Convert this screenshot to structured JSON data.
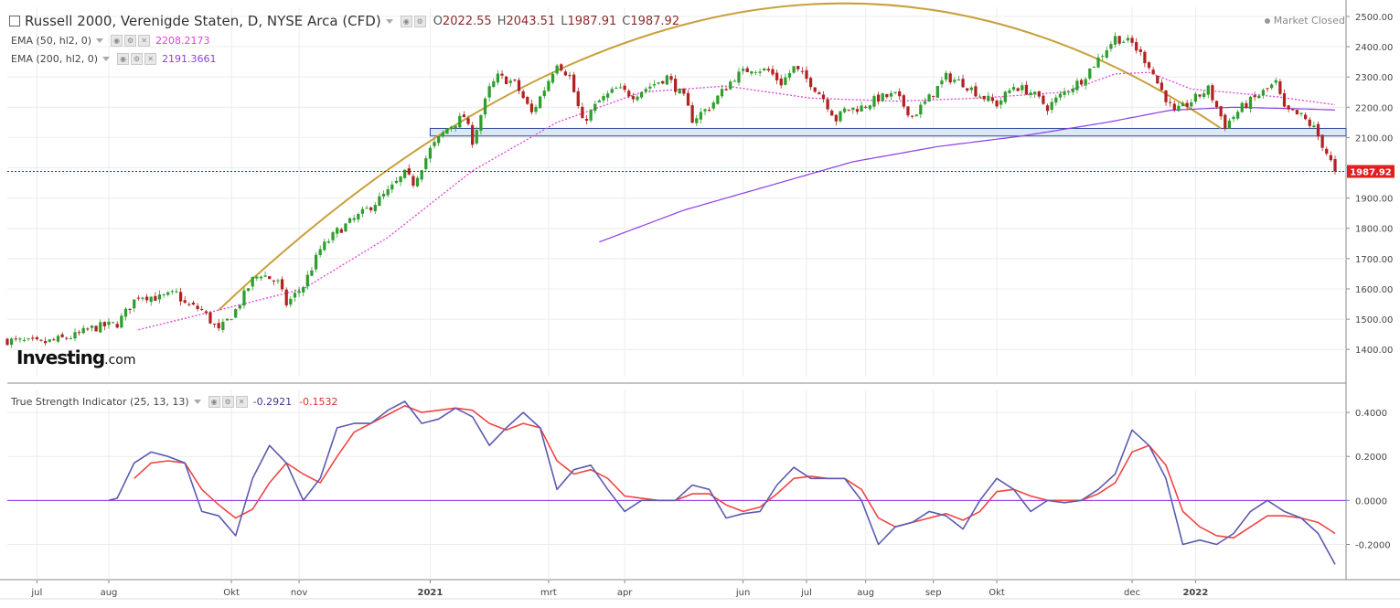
{
  "header": {
    "title": "Russell 2000, Verenigde Staten, D, NYSE Arca (CFD)",
    "ohlc": [
      {
        "k": "O",
        "v": "2022.55"
      },
      {
        "k": "H",
        "v": "2043.51"
      },
      {
        "k": "L",
        "v": "1987.91"
      },
      {
        "k": "C",
        "v": "1987.92"
      }
    ],
    "market_status": "Market Closed"
  },
  "indicators": [
    {
      "label": "EMA (50, hl2, 0)",
      "value": "2208.2173",
      "color": "#e040e0"
    },
    {
      "label": "EMA (200, hl2, 0)",
      "value": "2191.3661",
      "color": "#8a3ee8"
    }
  ],
  "logo": {
    "main": "Investing",
    "suffix": ".com"
  },
  "tsi": {
    "label": "True Strength Indicator (25, 13, 13)",
    "value1": "-0.2921",
    "value2": "-0.1532",
    "color1": "#5b5bb0",
    "color2": "#f04545"
  },
  "price_tag": "1987.92",
  "colors": {
    "up": "#2e9e2e",
    "down": "#b22222",
    "arc": "#c8a03c",
    "zone": "#dce8f8"
  },
  "chart_data": [
    {
      "type": "candlestick",
      "title": "Russell 2000, Verenigde Staten, D, NYSE Arca (CFD)",
      "x_labels": [
        "jul",
        "aug",
        "Okt",
        "nov",
        "2021",
        "mrt",
        "apr",
        "jun",
        "jul",
        "aug",
        "sep",
        "Okt",
        "dec",
        "2022"
      ],
      "y_ticks": [
        1400,
        1500,
        1600,
        1700,
        1800,
        1900,
        2000,
        2100,
        2200,
        2300,
        2400,
        2500
      ],
      "ylim": [
        1310,
        2530
      ],
      "last_price": 1987.92,
      "horizontal_zone": [
        2105,
        2130
      ],
      "close_path": [
        [
          0,
          1430
        ],
        [
          8,
          1420
        ],
        [
          16,
          1445
        ],
        [
          20,
          1470
        ],
        [
          26,
          1485
        ],
        [
          31,
          1580
        ],
        [
          36,
          1570
        ],
        [
          40,
          1585
        ],
        [
          42,
          1550
        ],
        [
          46,
          1530
        ],
        [
          50,
          1460
        ],
        [
          54,
          1530
        ],
        [
          58,
          1630
        ],
        [
          60,
          1650
        ],
        [
          64,
          1620
        ],
        [
          66,
          1550
        ],
        [
          70,
          1610
        ],
        [
          74,
          1730
        ],
        [
          78,
          1790
        ],
        [
          84,
          1850
        ],
        [
          90,
          1920
        ],
        [
          94,
          1980
        ],
        [
          96,
          1950
        ],
        [
          100,
          2060
        ],
        [
          104,
          2130
        ],
        [
          108,
          2170
        ],
        [
          110,
          2090
        ],
        [
          114,
          2260
        ],
        [
          116,
          2300
        ],
        [
          120,
          2280
        ],
        [
          124,
          2180
        ],
        [
          127,
          2260
        ],
        [
          130,
          2350
        ],
        [
          133,
          2300
        ],
        [
          136,
          2150
        ],
        [
          140,
          2220
        ],
        [
          144,
          2260
        ],
        [
          148,
          2240
        ],
        [
          152,
          2270
        ],
        [
          156,
          2300
        ],
        [
          160,
          2230
        ],
        [
          162,
          2160
        ],
        [
          166,
          2200
        ],
        [
          172,
          2300
        ],
        [
          176,
          2330
        ],
        [
          180,
          2320
        ],
        [
          183,
          2280
        ],
        [
          186,
          2330
        ],
        [
          190,
          2280
        ],
        [
          193,
          2230
        ],
        [
          196,
          2160
        ],
        [
          198,
          2190
        ],
        [
          202,
          2200
        ],
        [
          206,
          2230
        ],
        [
          210,
          2240
        ],
        [
          214,
          2170
        ],
        [
          218,
          2230
        ],
        [
          222,
          2300
        ],
        [
          226,
          2280
        ],
        [
          230,
          2240
        ],
        [
          234,
          2210
        ],
        [
          238,
          2270
        ],
        [
          242,
          2250
        ],
        [
          246,
          2200
        ],
        [
          250,
          2250
        ],
        [
          254,
          2290
        ],
        [
          258,
          2360
        ],
        [
          262,
          2430
        ],
        [
          266,
          2410
        ],
        [
          270,
          2340
        ],
        [
          272,
          2280
        ],
        [
          276,
          2180
        ],
        [
          280,
          2220
        ],
        [
          284,
          2260
        ],
        [
          288,
          2140
        ],
        [
          292,
          2200
        ],
        [
          296,
          2240
        ],
        [
          300,
          2280
        ],
        [
          302,
          2190
        ],
        [
          306,
          2170
        ],
        [
          309,
          2130
        ],
        [
          312,
          2050
        ],
        [
          314,
          1988
        ]
      ],
      "series": [
        {
          "name": "EMA (50, hl2, 0)",
          "points": [
            [
              31,
              1465
            ],
            [
              50,
              1530
            ],
            [
              70,
              1600
            ],
            [
              90,
              1770
            ],
            [
              110,
              1990
            ],
            [
              130,
              2150
            ],
            [
              150,
              2250
            ],
            [
              170,
              2270
            ],
            [
              190,
              2230
            ],
            [
              210,
              2220
            ],
            [
              230,
              2230
            ],
            [
              250,
              2250
            ],
            [
              262,
              2310
            ],
            [
              270,
              2315
            ],
            [
              280,
              2260
            ],
            [
              300,
              2235
            ],
            [
              314,
              2208
            ]
          ]
        },
        {
          "name": "EMA (200, hl2, 0)",
          "points": [
            [
              140,
              1755
            ],
            [
              160,
              1860
            ],
            [
              180,
              1940
            ],
            [
              200,
              2020
            ],
            [
              220,
              2070
            ],
            [
              240,
              2105
            ],
            [
              260,
              2150
            ],
            [
              275,
              2190
            ],
            [
              290,
              2200
            ],
            [
              305,
              2195
            ],
            [
              314,
              2191
            ]
          ]
        }
      ]
    },
    {
      "type": "line",
      "title": "True Strength Indicator (25, 13, 13)",
      "x_labels": [
        "jul",
        "aug",
        "Okt",
        "nov",
        "2021",
        "mrt",
        "apr",
        "jun",
        "jul",
        "aug",
        "sep",
        "Okt",
        "dec",
        "2022"
      ],
      "y_ticks": [
        -0.2,
        0.0,
        0.2,
        0.4
      ],
      "ylim": [
        -0.36,
        0.5
      ],
      "zero_line": 0.0,
      "series": [
        {
          "name": "-0.2921",
          "points": [
            [
              24,
              0.0
            ],
            [
              26,
              0.01
            ],
            [
              30,
              0.17
            ],
            [
              34,
              0.22
            ],
            [
              38,
              0.2
            ],
            [
              42,
              0.17
            ],
            [
              46,
              -0.05
            ],
            [
              50,
              -0.07
            ],
            [
              54,
              -0.16
            ],
            [
              58,
              0.1
            ],
            [
              62,
              0.25
            ],
            [
              66,
              0.17
            ],
            [
              70,
              0.0
            ],
            [
              74,
              0.1
            ],
            [
              78,
              0.33
            ],
            [
              82,
              0.35
            ],
            [
              86,
              0.35
            ],
            [
              90,
              0.41
            ],
            [
              94,
              0.45
            ],
            [
              98,
              0.35
            ],
            [
              102,
              0.37
            ],
            [
              106,
              0.42
            ],
            [
              110,
              0.38
            ],
            [
              114,
              0.25
            ],
            [
              118,
              0.33
            ],
            [
              122,
              0.4
            ],
            [
              126,
              0.33
            ],
            [
              130,
              0.05
            ],
            [
              134,
              0.14
            ],
            [
              138,
              0.16
            ],
            [
              142,
              0.05
            ],
            [
              146,
              -0.05
            ],
            [
              150,
              0.0
            ],
            [
              154,
              0.0
            ],
            [
              158,
              0.0
            ],
            [
              162,
              0.07
            ],
            [
              166,
              0.05
            ],
            [
              170,
              -0.08
            ],
            [
              174,
              -0.06
            ],
            [
              178,
              -0.05
            ],
            [
              182,
              0.07
            ],
            [
              186,
              0.15
            ],
            [
              190,
              0.1
            ],
            [
              194,
              0.1
            ],
            [
              198,
              0.1
            ],
            [
              202,
              0.0
            ],
            [
              206,
              -0.2
            ],
            [
              210,
              -0.12
            ],
            [
              214,
              -0.1
            ],
            [
              218,
              -0.05
            ],
            [
              222,
              -0.07
            ],
            [
              226,
              -0.13
            ],
            [
              230,
              0.0
            ],
            [
              234,
              0.1
            ],
            [
              238,
              0.05
            ],
            [
              242,
              -0.05
            ],
            [
              246,
              0.0
            ],
            [
              250,
              -0.01
            ],
            [
              254,
              0.0
            ],
            [
              258,
              0.05
            ],
            [
              262,
              0.12
            ],
            [
              266,
              0.32
            ],
            [
              270,
              0.25
            ],
            [
              274,
              0.1
            ],
            [
              278,
              -0.2
            ],
            [
              282,
              -0.18
            ],
            [
              286,
              -0.2
            ],
            [
              290,
              -0.15
            ],
            [
              294,
              -0.05
            ],
            [
              298,
              0.0
            ],
            [
              302,
              -0.05
            ],
            [
              306,
              -0.08
            ],
            [
              310,
              -0.15
            ],
            [
              314,
              -0.29
            ]
          ]
        },
        {
          "name": "-0.1532",
          "points": [
            [
              30,
              0.1
            ],
            [
              34,
              0.17
            ],
            [
              38,
              0.18
            ],
            [
              42,
              0.17
            ],
            [
              46,
              0.05
            ],
            [
              50,
              -0.02
            ],
            [
              54,
              -0.08
            ],
            [
              58,
              -0.04
            ],
            [
              62,
              0.08
            ],
            [
              66,
              0.17
            ],
            [
              70,
              0.12
            ],
            [
              74,
              0.08
            ],
            [
              78,
              0.2
            ],
            [
              82,
              0.31
            ],
            [
              86,
              0.35
            ],
            [
              90,
              0.39
            ],
            [
              94,
              0.43
            ],
            [
              98,
              0.4
            ],
            [
              102,
              0.41
            ],
            [
              106,
              0.42
            ],
            [
              110,
              0.41
            ],
            [
              114,
              0.35
            ],
            [
              118,
              0.32
            ],
            [
              122,
              0.35
            ],
            [
              126,
              0.33
            ],
            [
              130,
              0.18
            ],
            [
              134,
              0.12
            ],
            [
              138,
              0.14
            ],
            [
              142,
              0.1
            ],
            [
              146,
              0.02
            ],
            [
              150,
              0.01
            ],
            [
              154,
              0.0
            ],
            [
              158,
              0.0
            ],
            [
              162,
              0.03
            ],
            [
              166,
              0.03
            ],
            [
              170,
              -0.02
            ],
            [
              174,
              -0.05
            ],
            [
              178,
              -0.03
            ],
            [
              182,
              0.03
            ],
            [
              186,
              0.1
            ],
            [
              190,
              0.11
            ],
            [
              194,
              0.1
            ],
            [
              198,
              0.1
            ],
            [
              202,
              0.05
            ],
            [
              206,
              -0.08
            ],
            [
              210,
              -0.12
            ],
            [
              214,
              -0.1
            ],
            [
              218,
              -0.08
            ],
            [
              222,
              -0.06
            ],
            [
              226,
              -0.09
            ],
            [
              230,
              -0.05
            ],
            [
              234,
              0.04
            ],
            [
              238,
              0.05
            ],
            [
              242,
              0.02
            ],
            [
              246,
              0.0
            ],
            [
              250,
              0.0
            ],
            [
              254,
              0.0
            ],
            [
              258,
              0.03
            ],
            [
              262,
              0.08
            ],
            [
              266,
              0.22
            ],
            [
              270,
              0.25
            ],
            [
              274,
              0.16
            ],
            [
              278,
              -0.05
            ],
            [
              282,
              -0.12
            ],
            [
              286,
              -0.16
            ],
            [
              290,
              -0.17
            ],
            [
              294,
              -0.12
            ],
            [
              298,
              -0.07
            ],
            [
              302,
              -0.07
            ],
            [
              306,
              -0.08
            ],
            [
              310,
              -0.1
            ],
            [
              314,
              -0.15
            ]
          ]
        }
      ]
    }
  ]
}
